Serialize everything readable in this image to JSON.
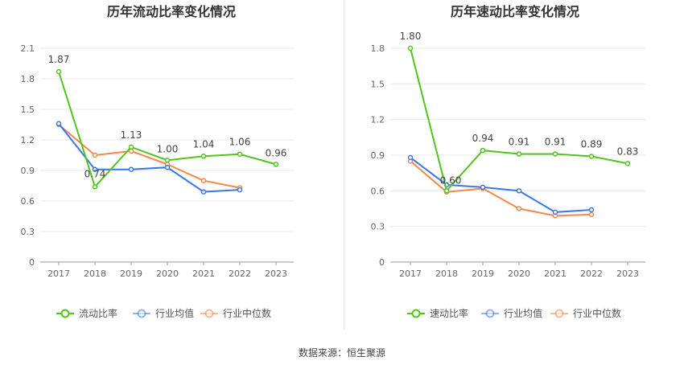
{
  "source": "数据来源：恒生聚源",
  "chart_data": [
    {
      "type": "line",
      "title": "历年流动比率变化情况",
      "categories": [
        "2017",
        "2018",
        "2019",
        "2020",
        "2021",
        "2022",
        "2023"
      ],
      "yticks": [
        "0",
        "0.3",
        "0.6",
        "0.9",
        "1.2",
        "1.5",
        "1.8",
        "2.1"
      ],
      "ylim": [
        0,
        2.1
      ],
      "grid": true,
      "legend_position": "bottom",
      "series": [
        {
          "name": "流动比率",
          "color": "#52c41a",
          "values": [
            1.87,
            0.74,
            1.13,
            1.0,
            1.04,
            1.06,
            0.96
          ],
          "labels": [
            "1.87",
            "0.74",
            "1.13",
            "1.00",
            "1.04",
            "1.06",
            "0.96"
          ]
        },
        {
          "name": "行业均值",
          "color": "#3b78e7",
          "values": [
            1.36,
            0.91,
            0.91,
            0.93,
            0.69,
            0.71,
            null
          ]
        },
        {
          "name": "行业中位数",
          "color": "#f4874b",
          "values": [
            1.35,
            1.05,
            1.09,
            0.96,
            0.8,
            0.73,
            null
          ]
        }
      ]
    },
    {
      "type": "line",
      "title": "历年速动比率变化情况",
      "categories": [
        "2017",
        "2018",
        "2019",
        "2020",
        "2021",
        "2022",
        "2023"
      ],
      "yticks": [
        "0",
        "0.3",
        "0.6",
        "0.9",
        "1.2",
        "1.5",
        "1.8"
      ],
      "ylim": [
        0,
        1.8
      ],
      "grid": true,
      "legend_position": "bottom",
      "series": [
        {
          "name": "速动比率",
          "color": "#52c41a",
          "values": [
            1.8,
            0.6,
            0.94,
            0.91,
            0.91,
            0.89,
            0.83
          ],
          "labels": [
            "1.80",
            "0.60",
            "0.94",
            "0.91",
            "0.91",
            "0.89",
            "0.83"
          ]
        },
        {
          "name": "行业均值",
          "color": "#3b78e7",
          "values": [
            0.88,
            0.65,
            0.63,
            0.6,
            0.42,
            0.44,
            null
          ]
        },
        {
          "name": "行业中位数",
          "color": "#f4874b",
          "values": [
            0.85,
            0.59,
            0.62,
            0.45,
            0.39,
            0.4,
            null
          ]
        }
      ]
    }
  ]
}
